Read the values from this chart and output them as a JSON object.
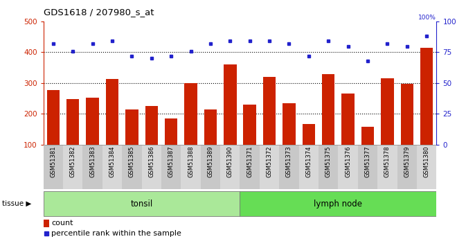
{
  "title": "GDS1618 / 207980_s_at",
  "samples": [
    "GSM51381",
    "GSM51382",
    "GSM51383",
    "GSM51384",
    "GSM51385",
    "GSM51386",
    "GSM51387",
    "GSM51388",
    "GSM51389",
    "GSM51390",
    "GSM51371",
    "GSM51372",
    "GSM51373",
    "GSM51374",
    "GSM51375",
    "GSM51376",
    "GSM51377",
    "GSM51378",
    "GSM51379",
    "GSM51380"
  ],
  "counts": [
    278,
    248,
    252,
    313,
    215,
    225,
    185,
    300,
    215,
    360,
    230,
    320,
    235,
    168,
    328,
    265,
    157,
    315,
    298,
    415
  ],
  "percentiles": [
    82,
    76,
    82,
    84,
    72,
    70,
    72,
    76,
    82,
    84,
    84,
    84,
    82,
    72,
    84,
    80,
    68,
    82,
    80,
    88
  ],
  "tonsil_count": 10,
  "lymph_count": 10,
  "bar_color": "#cc2200",
  "dot_color": "#2222cc",
  "ylim_left": [
    100,
    500
  ],
  "ylim_right": [
    0,
    100
  ],
  "yticks_left": [
    100,
    200,
    300,
    400,
    500
  ],
  "yticks_right": [
    0,
    25,
    50,
    75,
    100
  ],
  "grid_values": [
    200,
    300,
    400
  ],
  "tonsil_color": "#aae899",
  "lymph_color": "#66dd55",
  "tissue_label": "tissue",
  "legend_count": "count",
  "legend_pct": "percentile rank within the sample",
  "bar_width": 0.65
}
